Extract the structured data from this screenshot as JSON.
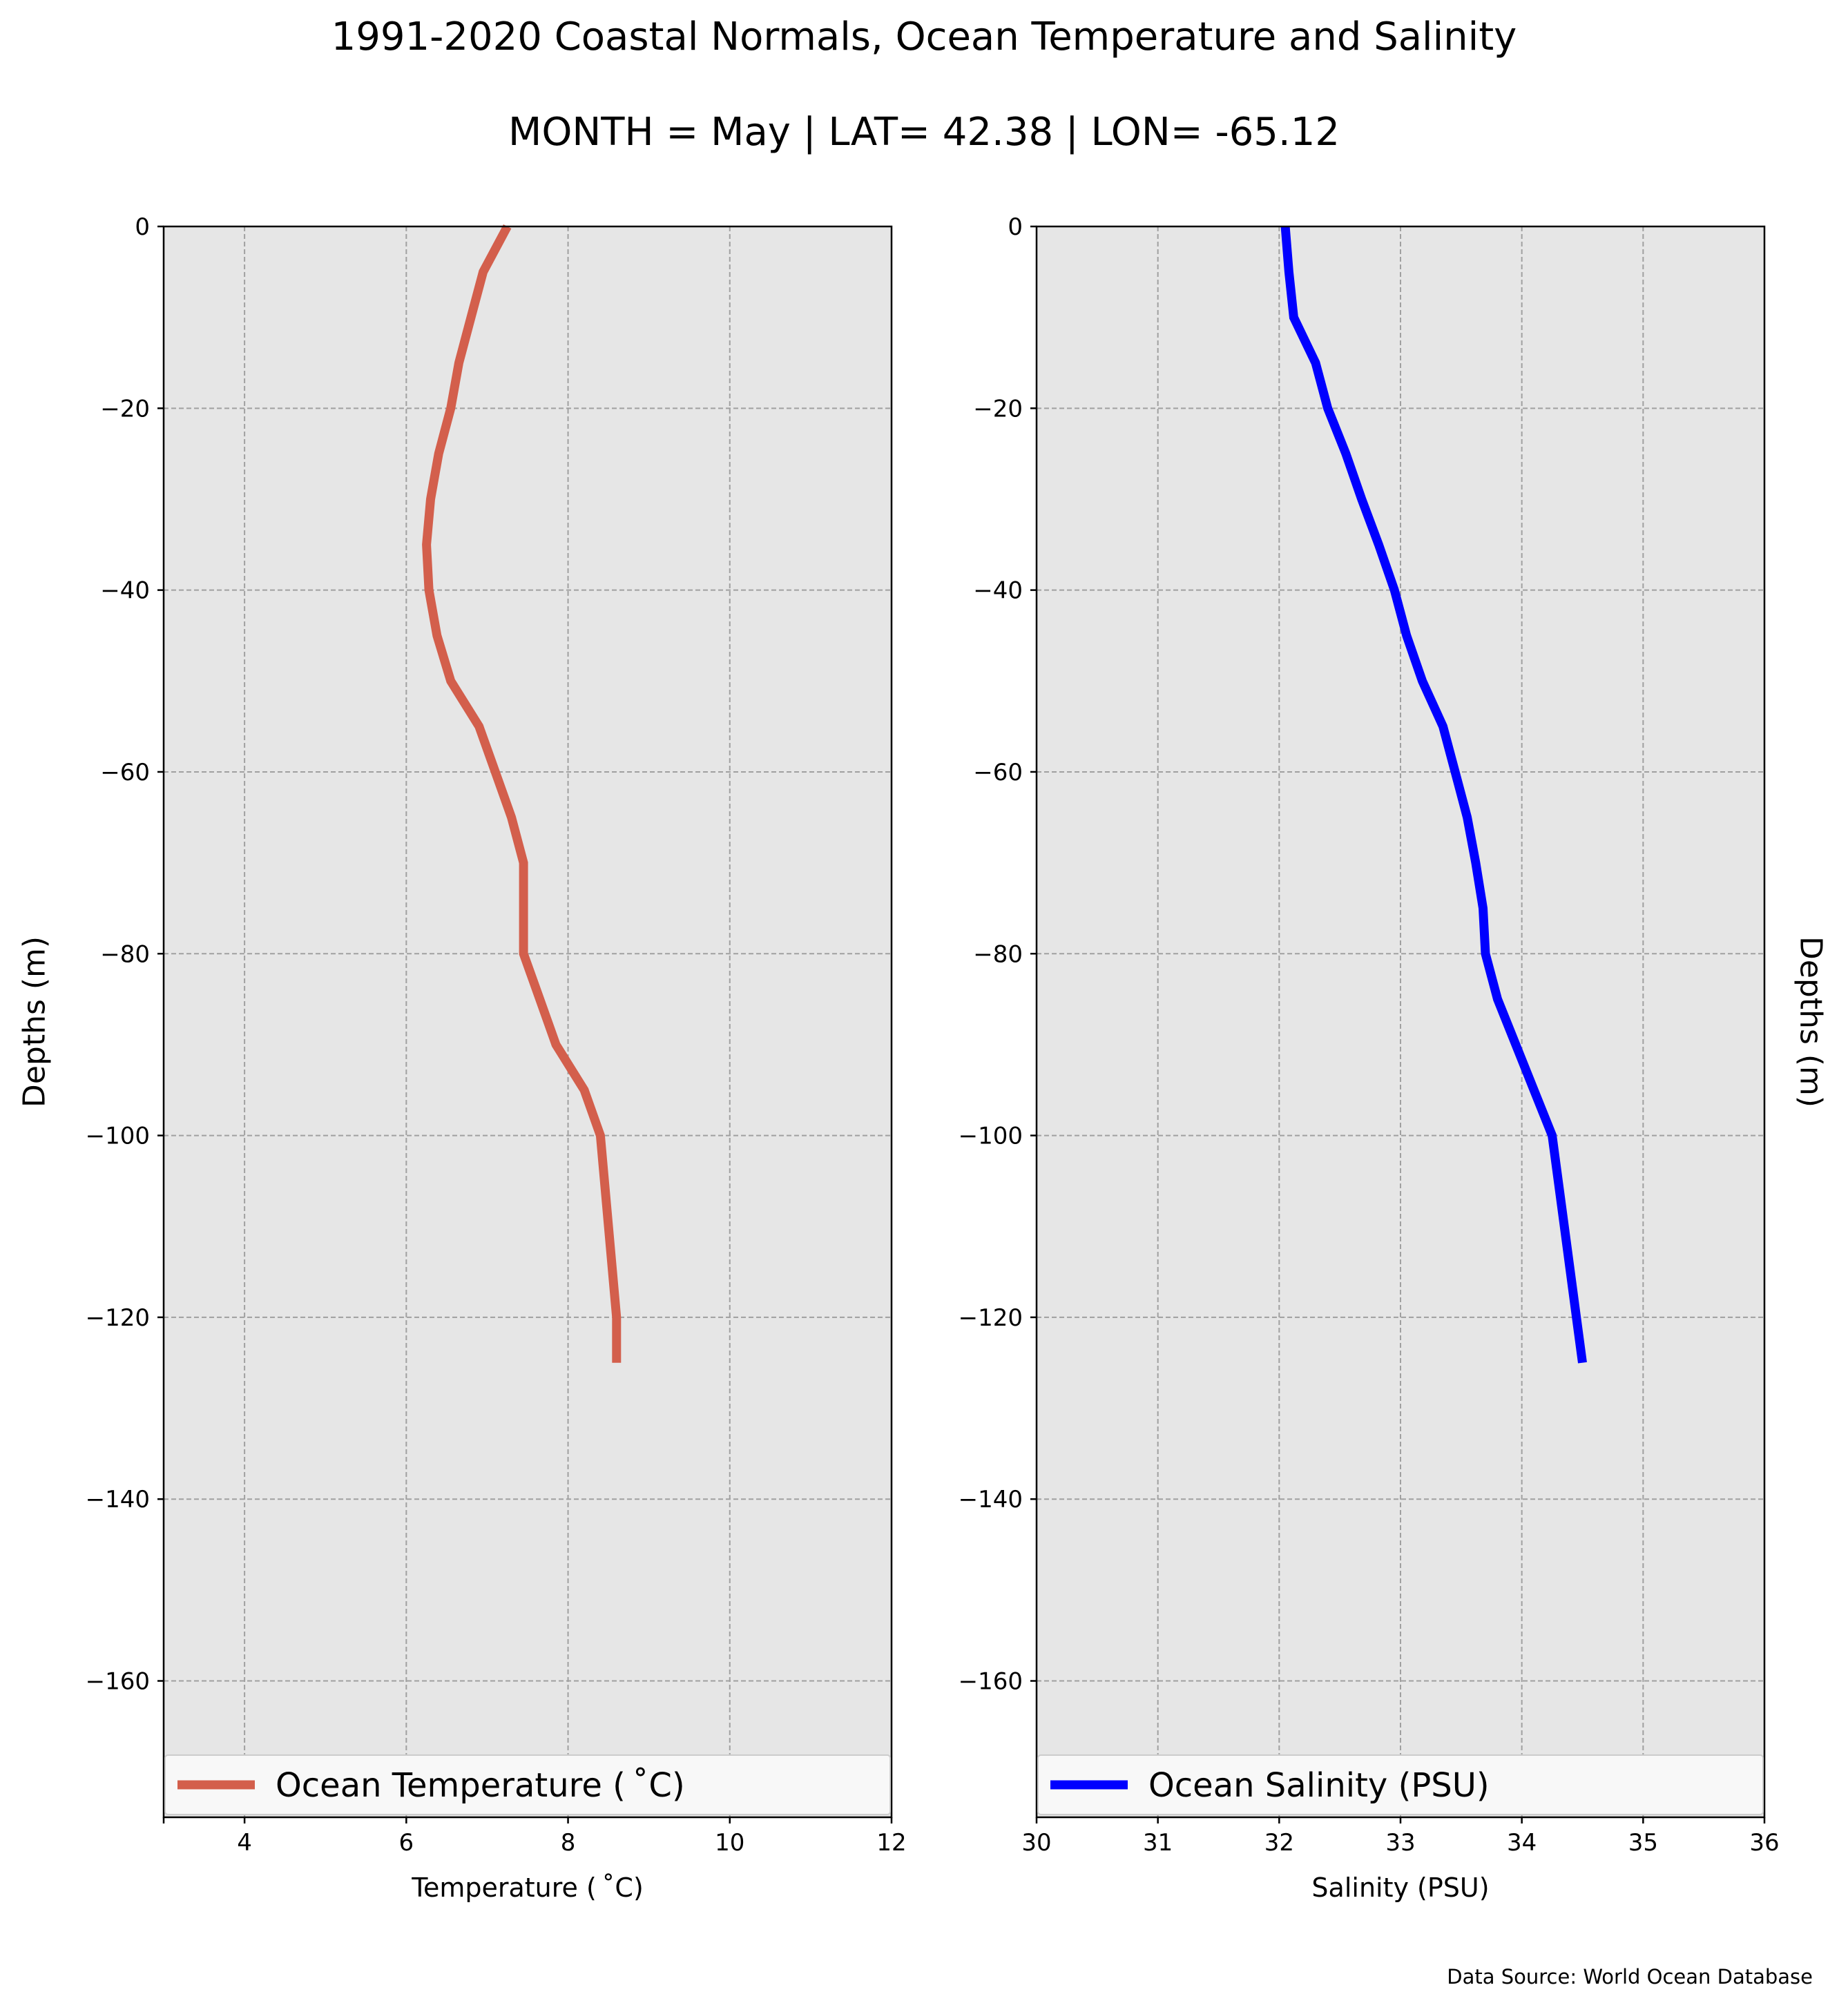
{
  "figure": {
    "title": "1991-2020 Coastal Normals, Ocean Temperature and Salinity",
    "subtitle": "MONTH = May | LAT= 42.38 | LON= -65.12",
    "source": "Data Source: World Ocean Database"
  },
  "chart_data": [
    {
      "type": "line",
      "xlabel": "Temperature ($^\\circ$C)",
      "xlabel_display": "Temperature ( ˚C)",
      "ylabel": "Depths (m)",
      "xlim": [
        3,
        12
      ],
      "ylim": [
        -175,
        0
      ],
      "xticks": [
        4,
        6,
        8,
        10,
        12
      ],
      "yticks": [
        0,
        -20,
        -40,
        -60,
        -80,
        -100,
        -120,
        -140,
        -160
      ],
      "ytick_labels": [
        "0",
        "−20",
        "−40",
        "−60",
        "−80",
        "−100",
        "−120",
        "−140",
        "−160"
      ],
      "grid": true,
      "legend": "lower center",
      "series": [
        {
          "name": "Ocean Temperature ($^\\circ$C)",
          "name_display": "Ocean Temperature ( ˚C)",
          "color": "#d35f4c",
          "points": [
            [
              7.25,
              0
            ],
            [
              6.95,
              -5
            ],
            [
              6.8,
              -10
            ],
            [
              6.65,
              -15
            ],
            [
              6.55,
              -20
            ],
            [
              6.4,
              -25
            ],
            [
              6.3,
              -30
            ],
            [
              6.25,
              -35
            ],
            [
              6.28,
              -40
            ],
            [
              6.38,
              -45
            ],
            [
              6.55,
              -50
            ],
            [
              6.9,
              -55
            ],
            [
              7.1,
              -60
            ],
            [
              7.3,
              -65
            ],
            [
              7.45,
              -70
            ],
            [
              7.45,
              -75
            ],
            [
              7.45,
              -80
            ],
            [
              7.65,
              -85
            ],
            [
              7.85,
              -90
            ],
            [
              8.2,
              -95
            ],
            [
              8.4,
              -100
            ],
            [
              8.5,
              -110
            ],
            [
              8.6,
              -120
            ],
            [
              8.6,
              -125
            ]
          ]
        }
      ]
    },
    {
      "type": "line",
      "xlabel": "Salinity (PSU)",
      "ylabel": "Depths (m)",
      "xlim": [
        30,
        36
      ],
      "ylim": [
        -175,
        0
      ],
      "xticks": [
        30,
        31,
        32,
        33,
        34,
        35,
        36
      ],
      "yticks": [
        0,
        -20,
        -40,
        -60,
        -80,
        -100,
        -120,
        -140,
        -160
      ],
      "ytick_labels": [
        "0",
        "−20",
        "−40",
        "−60",
        "−80",
        "−100",
        "−120",
        "−140",
        "−160"
      ],
      "grid": true,
      "legend": "lower center",
      "series": [
        {
          "name": "Ocean Salinity (PSU)",
          "color": "#0000ff",
          "points": [
            [
              32.05,
              0
            ],
            [
              32.08,
              -5
            ],
            [
              32.12,
              -10
            ],
            [
              32.3,
              -15
            ],
            [
              32.4,
              -20
            ],
            [
              32.55,
              -25
            ],
            [
              32.68,
              -30
            ],
            [
              32.82,
              -35
            ],
            [
              32.95,
              -40
            ],
            [
              33.05,
              -45
            ],
            [
              33.18,
              -50
            ],
            [
              33.35,
              -55
            ],
            [
              33.45,
              -60
            ],
            [
              33.55,
              -65
            ],
            [
              33.62,
              -70
            ],
            [
              33.68,
              -75
            ],
            [
              33.7,
              -80
            ],
            [
              33.8,
              -85
            ],
            [
              33.95,
              -90
            ],
            [
              34.1,
              -95
            ],
            [
              34.25,
              -100
            ],
            [
              34.35,
              -110
            ],
            [
              34.45,
              -120
            ],
            [
              34.5,
              -125
            ]
          ]
        }
      ]
    }
  ]
}
